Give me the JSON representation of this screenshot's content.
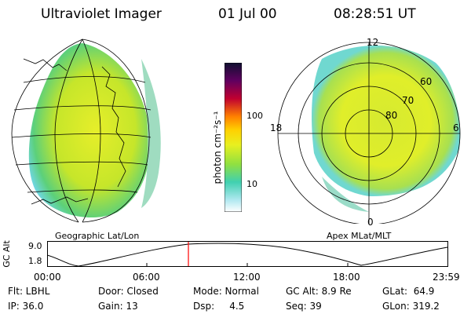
{
  "header": {
    "title": "Ultraviolet Imager",
    "date": "01 Jul 00",
    "time": "08:28:51 UT"
  },
  "left_panel": {
    "label": "Geographic Lat/Lon"
  },
  "right_panel": {
    "label": "Apex MLat/MLT",
    "lat_labels": [
      "80",
      "70",
      "60"
    ],
    "mlt_labels": {
      "top": "12",
      "left": "18",
      "right": "6",
      "bottom": "0"
    }
  },
  "colorbar": {
    "unit_label": "photon cm⁻²s⁻¹",
    "ticks": [
      "100",
      "10"
    ],
    "scale": "log"
  },
  "altitude_plot": {
    "axis_label": "GC Alt",
    "y_ticks": [
      "9.0",
      "1.8"
    ],
    "x_ticks": [
      "00:00",
      "06:00",
      "12:00",
      "18:00",
      "23:59"
    ],
    "current_marker_color": "#ff0000"
  },
  "info": {
    "row1": {
      "flt": "Flt: LBHL",
      "door": "Door: Closed",
      "mode": "Mode: Normal",
      "gcalt": "GC Alt: 8.9 Re",
      "glat": "GLat:  64.9"
    },
    "row2": {
      "ip": "IP: 36.0",
      "gain": "Gain: 13",
      "dsp": "Dsp:     4.5",
      "seq": "Seq: 39",
      "glon": "GLon: 319.2"
    }
  }
}
